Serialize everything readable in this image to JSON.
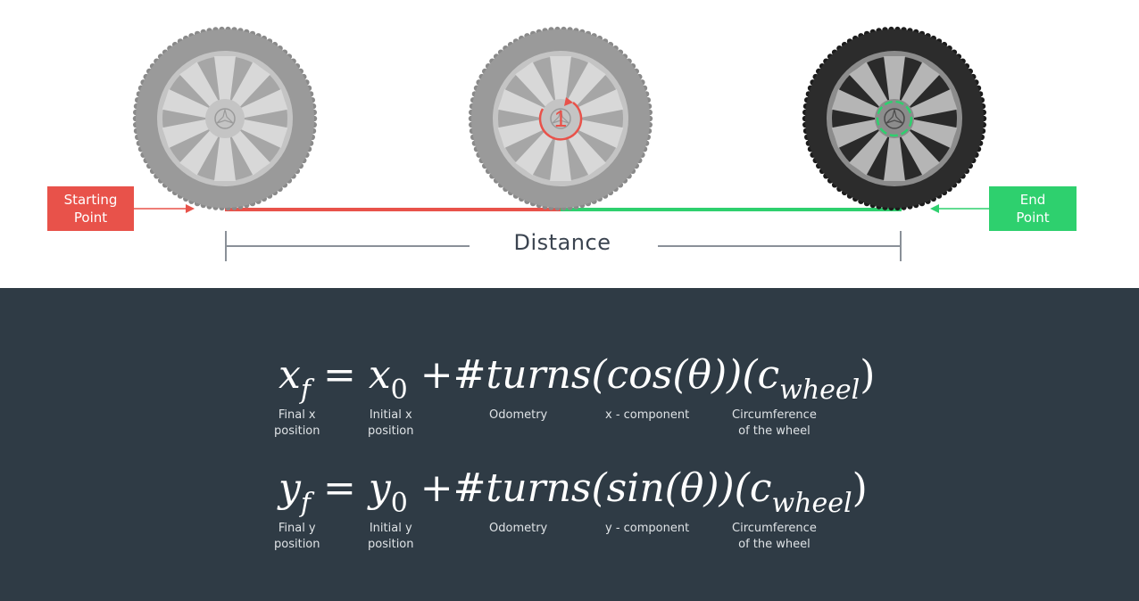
{
  "top": {
    "start_label": [
      "Starting",
      "Point"
    ],
    "end_label": [
      "End",
      "Point"
    ],
    "distance_label": "Distance",
    "turn_count": "1",
    "colors": {
      "start": "#e8524a",
      "end": "#2ed06e",
      "light_tire": "#9a9a9a",
      "dark_tire": "#2c2c2c"
    }
  },
  "equations": {
    "x": {
      "lhs": "x",
      "lhs_sub": "f",
      "eq": "=",
      "init": "x",
      "init_sub": "0",
      "plus": "+",
      "odometry": "#turns",
      "component": "(cos(θ))",
      "circ": "(c",
      "circ_sub": "wheel",
      "circ_close": ")",
      "captions": {
        "final": [
          "Final x",
          "position"
        ],
        "initial": [
          "Initial x",
          "position"
        ],
        "odometry": [
          "Odometry"
        ],
        "component": [
          "x - component"
        ],
        "circumference": [
          "Circumference",
          "of the wheel"
        ]
      }
    },
    "y": {
      "lhs": "y",
      "lhs_sub": "f",
      "eq": "=",
      "init": "y",
      "init_sub": "0",
      "plus": "+",
      "odometry": "#turns",
      "component": "(sin(θ))",
      "circ": "(c",
      "circ_sub": "wheel",
      "circ_close": ")",
      "captions": {
        "final": [
          "Final y",
          "position"
        ],
        "initial": [
          "Initial y",
          "position"
        ],
        "odometry": [
          "Odometry"
        ],
        "component": [
          "y - component"
        ],
        "circumference": [
          "Circumference",
          "of the wheel"
        ]
      }
    }
  },
  "colors": {
    "panel_bg": "#2f3b45",
    "text_dark": "#3b4450"
  }
}
